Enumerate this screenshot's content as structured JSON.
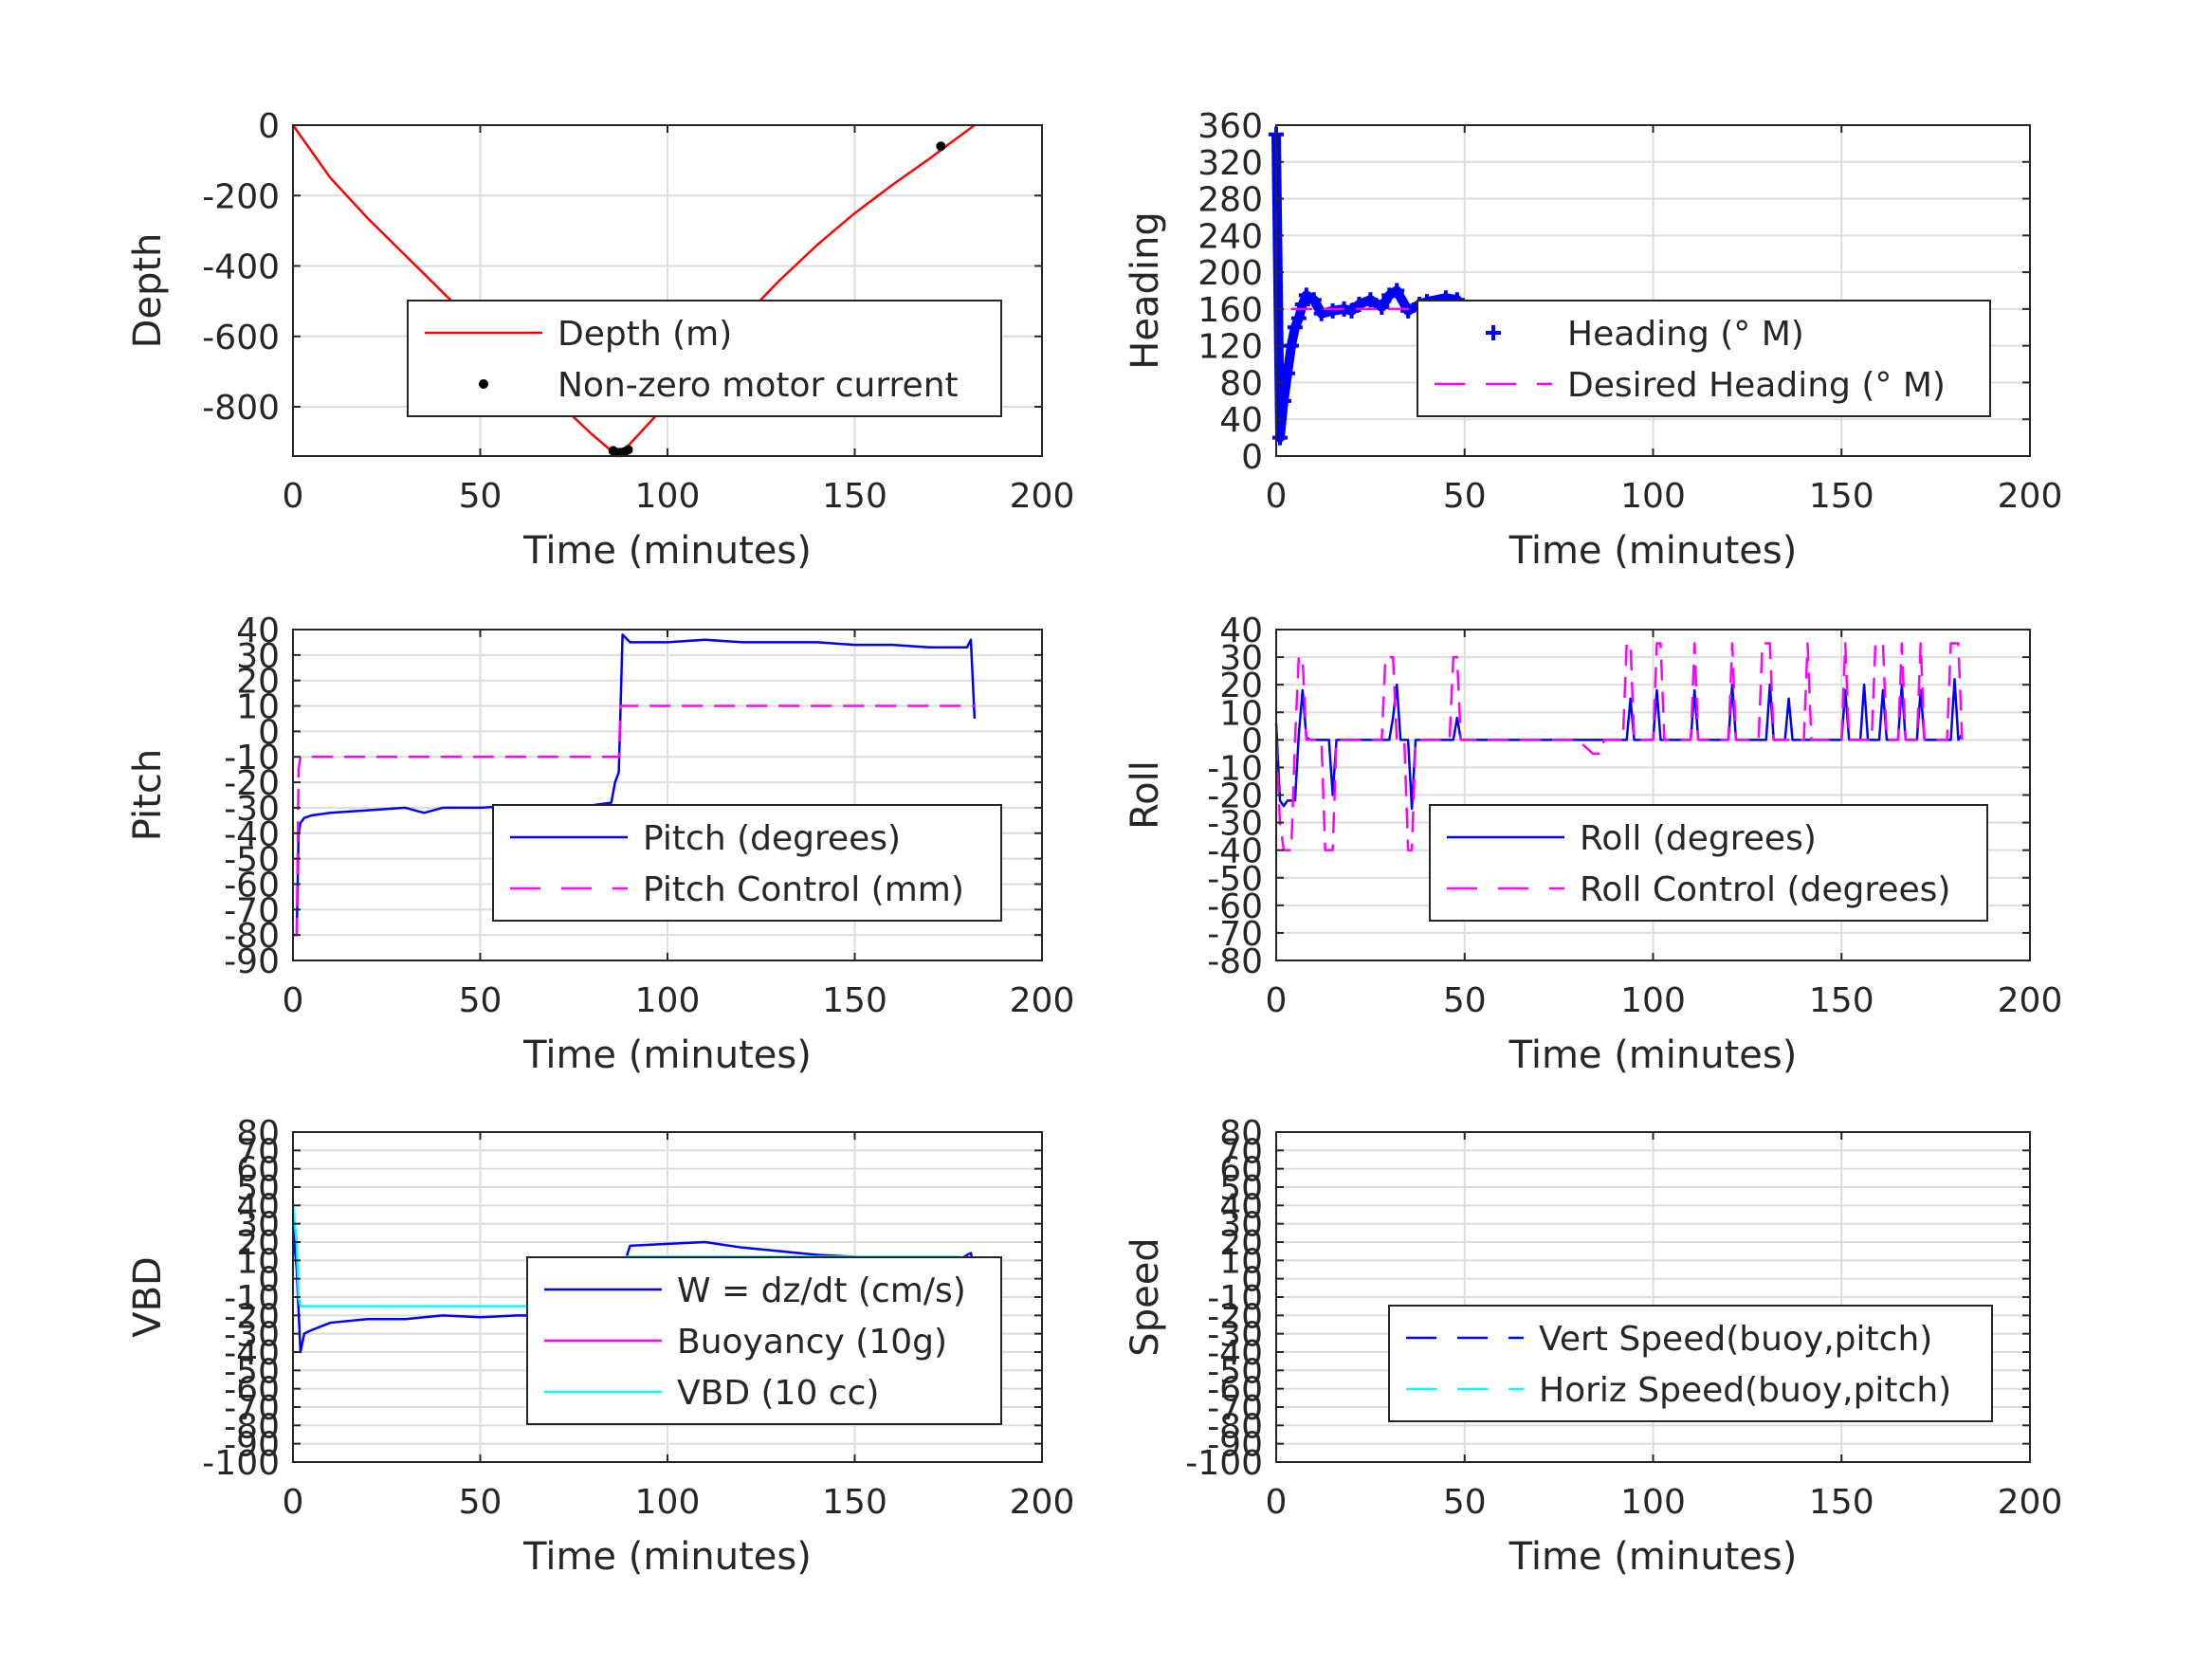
{
  "figure": {
    "background": "#ffffff",
    "grid_color": "#dddddd",
    "axis_color": "#262626"
  },
  "chart_data": [
    {
      "id": "depth",
      "type": "line",
      "title": "",
      "xlabel": "Time (minutes)",
      "ylabel": "Depth",
      "xlim": [
        0,
        200
      ],
      "ylim": [
        -940,
        0
      ],
      "xticks": [
        0,
        50,
        100,
        150,
        200
      ],
      "yticks": [
        0,
        -200,
        -400,
        -600,
        -800
      ],
      "grid": true,
      "legend_position": "lower-right",
      "series": [
        {
          "name": "Depth (m)",
          "style": "solid",
          "color": "#ff0000",
          "x": [
            0,
            10,
            20,
            30,
            40,
            50,
            60,
            70,
            80,
            85,
            87,
            88,
            90,
            100,
            110,
            120,
            130,
            140,
            150,
            160,
            170,
            175,
            182
          ],
          "y": [
            0,
            -150,
            -265,
            -370,
            -475,
            -580,
            -680,
            -780,
            -880,
            -925,
            -930,
            -928,
            -905,
            -790,
            -670,
            -550,
            -440,
            -340,
            -250,
            -170,
            -95,
            -55,
            0
          ]
        },
        {
          "name": "Non-zero motor current",
          "style": "marker",
          "marker": "dot",
          "color": "#000000",
          "x": [
            85.5,
            86.5,
            87.5,
            88.5,
            89.5,
            173
          ],
          "y": [
            -925,
            -930,
            -930,
            -928,
            -922,
            -60
          ]
        }
      ]
    },
    {
      "id": "heading",
      "type": "line",
      "title": "",
      "xlabel": "Time (minutes)",
      "ylabel": "Heading",
      "xlim": [
        0,
        200
      ],
      "ylim": [
        0,
        360
      ],
      "xticks": [
        0,
        50,
        100,
        150,
        200
      ],
      "yticks": [
        0,
        40,
        80,
        120,
        160,
        200,
        240,
        280,
        320,
        360
      ],
      "grid": true,
      "legend_position": "lower-right",
      "series": [
        {
          "name": "Heading (° M)",
          "style": "plus",
          "color": "#0000ff",
          "x": [
            0,
            1,
            2,
            3,
            4,
            5,
            6,
            7,
            8,
            10,
            12,
            15,
            18,
            20,
            22,
            25,
            28,
            30,
            32,
            35,
            38,
            40,
            45,
            48,
            50,
            55,
            60,
            65,
            70,
            75,
            80,
            85,
            90,
            95,
            100,
            105,
            110,
            115,
            120,
            125,
            130,
            135,
            140,
            145,
            150,
            155,
            160,
            165,
            170,
            175,
            180,
            183
          ],
          "y": [
            350,
            20,
            60,
            90,
            120,
            140,
            150,
            165,
            175,
            170,
            155,
            158,
            160,
            158,
            165,
            170,
            162,
            175,
            180,
            158,
            165,
            168,
            172,
            170,
            155,
            160,
            162,
            158,
            155,
            150,
            148,
            152,
            150,
            145,
            150,
            142,
            158,
            150,
            145,
            162,
            150,
            148,
            145,
            150,
            148,
            145,
            155,
            148,
            160,
            145,
            150,
            150
          ]
        },
        {
          "name": "Desired Heading (° M)",
          "style": "dashed",
          "color": "#ff00ff",
          "x": [
            4,
            183
          ],
          "y": [
            160,
            160
          ]
        }
      ]
    },
    {
      "id": "pitch",
      "type": "line",
      "title": "",
      "xlabel": "Time (minutes)",
      "ylabel": "Pitch",
      "xlim": [
        0,
        200
      ],
      "ylim": [
        -90,
        40
      ],
      "xticks": [
        0,
        50,
        100,
        150,
        200
      ],
      "yticks": [
        40,
        30,
        20,
        10,
        0,
        -10,
        -20,
        -30,
        -40,
        -50,
        -60,
        -70,
        -80,
        -90
      ],
      "grid": true,
      "legend_position": "lower-right",
      "series": [
        {
          "name": "Pitch (degrees)",
          "style": "solid",
          "color": "#0000ff",
          "x": [
            0,
            1,
            1.5,
            2,
            3,
            5,
            10,
            20,
            30,
            35,
            40,
            50,
            60,
            70,
            80,
            85,
            86,
            87,
            88,
            90,
            100,
            110,
            120,
            130,
            140,
            150,
            160,
            170,
            180,
            181,
            182
          ],
          "y": [
            -80,
            -80,
            -40,
            -36,
            -34,
            -33,
            -32,
            -31,
            -30,
            -32,
            -30,
            -30,
            -29,
            -29,
            -29,
            -28,
            -20,
            -16,
            38,
            35,
            35,
            36,
            35,
            35,
            35,
            34,
            34,
            33,
            33,
            36,
            5
          ]
        },
        {
          "name": "Pitch Control (mm)",
          "style": "dashed",
          "color": "#ff00ff",
          "x": [
            0,
            1,
            1.5,
            2,
            5,
            20,
            40,
            60,
            80,
            87,
            87.5,
            88,
            100,
            120,
            140,
            160,
            180,
            182
          ],
          "y": [
            -80,
            -80,
            -15,
            -10,
            -10,
            -10,
            -10,
            -10,
            -10,
            -10,
            10,
            10,
            10,
            10,
            10,
            10,
            10,
            10
          ]
        }
      ]
    },
    {
      "id": "roll",
      "type": "line",
      "title": "",
      "xlabel": "Time (minutes)",
      "ylabel": "Roll",
      "xlim": [
        0,
        200
      ],
      "ylim": [
        -80,
        40
      ],
      "xticks": [
        0,
        50,
        100,
        150,
        200
      ],
      "yticks": [
        40,
        30,
        20,
        10,
        0,
        -10,
        -20,
        -30,
        -40,
        -50,
        -60,
        -70,
        -80
      ],
      "grid": true,
      "legend_position": "lower-right",
      "series": [
        {
          "name": "Roll (degrees)",
          "style": "solid",
          "color": "#0000ff",
          "x": [
            0,
            1,
            2,
            3,
            5,
            6,
            7,
            8,
            9,
            10,
            14,
            15,
            16,
            20,
            30,
            31,
            32,
            33,
            35,
            36,
            37,
            40,
            47,
            48,
            49,
            50,
            60,
            70,
            80,
            85,
            90,
            93,
            94,
            95,
            100,
            101,
            102,
            103,
            110,
            111,
            112,
            120,
            121,
            122,
            130,
            131,
            132,
            135,
            136,
            137,
            140,
            150,
            151,
            152,
            155,
            156,
            157,
            160,
            161,
            162,
            165,
            166,
            167,
            170,
            171,
            172,
            178,
            179,
            180,
            181,
            182
          ],
          "y": [
            6,
            -22,
            -24,
            -22,
            -22,
            2,
            18,
            1,
            0,
            0,
            0,
            -20,
            0,
            0,
            0,
            8,
            20,
            0,
            0,
            -25,
            0,
            0,
            0,
            8,
            0,
            0,
            0,
            0,
            0,
            0,
            0,
            0,
            15,
            0,
            0,
            18,
            0,
            0,
            0,
            18,
            0,
            0,
            20,
            0,
            0,
            20,
            0,
            0,
            15,
            0,
            0,
            0,
            18,
            0,
            0,
            20,
            0,
            0,
            18,
            0,
            0,
            20,
            0,
            0,
            18,
            0,
            0,
            0,
            22,
            0,
            2
          ]
        },
        {
          "name": "Roll Control (degrees)",
          "style": "dashed",
          "color": "#ff00ff",
          "x": [
            0,
            1,
            2,
            3,
            4,
            5,
            6,
            7,
            8,
            9,
            12,
            13,
            14,
            15,
            16,
            20,
            28,
            29,
            30,
            31,
            32,
            33,
            34,
            35,
            36,
            37,
            38,
            40,
            46,
            47,
            48,
            49,
            50,
            60,
            70,
            80,
            84,
            85,
            86,
            87,
            88,
            90,
            92,
            93,
            94,
            95,
            100,
            101,
            102,
            103,
            110,
            111,
            112,
            120,
            121,
            122,
            128,
            129,
            130,
            131,
            132,
            140,
            141,
            142,
            150,
            151,
            152,
            158,
            159,
            160,
            161,
            162,
            165,
            166,
            167,
            170,
            171,
            172,
            178,
            179,
            180,
            181,
            182
          ],
          "y": [
            0,
            -30,
            -40,
            -40,
            -40,
            0,
            30,
            30,
            0,
            0,
            0,
            -40,
            -40,
            -40,
            0,
            0,
            0,
            30,
            30,
            30,
            0,
            0,
            0,
            -40,
            -40,
            0,
            0,
            0,
            0,
            30,
            30,
            0,
            0,
            0,
            0,
            0,
            -5,
            -5,
            -5,
            0,
            0,
            0,
            0,
            35,
            35,
            0,
            0,
            35,
            35,
            0,
            0,
            35,
            0,
            0,
            35,
            0,
            0,
            35,
            35,
            35,
            0,
            0,
            35,
            0,
            0,
            35,
            0,
            0,
            35,
            35,
            35,
            0,
            0,
            35,
            0,
            0,
            35,
            0,
            0,
            35,
            35,
            35,
            0
          ]
        }
      ]
    },
    {
      "id": "vbd",
      "type": "line",
      "title": "",
      "xlabel": "Time (minutes)",
      "ylabel": "VBD",
      "xlim": [
        0,
        200
      ],
      "ylim": [
        -100,
        80
      ],
      "xticks": [
        0,
        50,
        100,
        150,
        200
      ],
      "yticks": [
        80,
        70,
        60,
        50,
        40,
        30,
        20,
        10,
        0,
        -10,
        -20,
        -30,
        -40,
        -50,
        -60,
        -70,
        -80,
        -90,
        -100
      ],
      "grid": true,
      "legend_position": "lower-right",
      "series": [
        {
          "name": "W = dz/dt (cm/s)",
          "style": "solid",
          "color": "#0000ff",
          "x": [
            0,
            1,
            2,
            3,
            5,
            10,
            20,
            30,
            40,
            50,
            60,
            70,
            80,
            85,
            86,
            87,
            88,
            90,
            100,
            110,
            120,
            130,
            140,
            150,
            160,
            170,
            178,
            180,
            181,
            182
          ],
          "y": [
            28,
            5,
            -40,
            -30,
            -28,
            -24,
            -22,
            -22,
            -20,
            -21,
            -20,
            -20,
            -19,
            -19,
            -15,
            -5,
            5,
            18,
            19,
            20,
            17,
            15,
            13,
            12,
            11,
            8,
            10,
            13,
            14,
            5
          ]
        },
        {
          "name": "Buoyancy (10g)",
          "style": "solid",
          "color": "#ff00ff",
          "x": [],
          "y": []
        },
        {
          "name": "VBD (10 cc)",
          "style": "solid",
          "color": "#00ffff",
          "x": [
            0,
            1,
            1.5,
            2,
            5,
            20,
            40,
            60,
            80,
            86,
            87,
            88,
            89,
            90,
            100,
            120,
            140,
            160,
            175,
            178,
            179,
            182
          ],
          "y": [
            40,
            20,
            -10,
            -15,
            -15,
            -15,
            -15,
            -15,
            -15,
            -15,
            -5,
            8,
            12,
            12,
            12,
            12,
            12,
            12,
            12,
            12,
            10,
            10
          ]
        }
      ]
    },
    {
      "id": "speed",
      "type": "line",
      "title": "",
      "xlabel": "Time (minutes)",
      "ylabel": "Speed",
      "xlim": [
        0,
        200
      ],
      "ylim": [
        -100,
        80
      ],
      "xticks": [
        0,
        50,
        100,
        150,
        200
      ],
      "yticks": [
        80,
        70,
        60,
        50,
        40,
        30,
        20,
        10,
        0,
        -10,
        -20,
        -30,
        -40,
        -50,
        -60,
        -70,
        -80,
        -90,
        -100
      ],
      "grid": true,
      "legend_position": "lower-right",
      "series": [
        {
          "name": "Vert Speed(buoy,pitch)",
          "style": "dashed",
          "color": "#0000ff",
          "x": [],
          "y": []
        },
        {
          "name": "Horiz Speed(buoy,pitch)",
          "style": "dashed",
          "color": "#00ffff",
          "x": [],
          "y": []
        }
      ]
    }
  ]
}
